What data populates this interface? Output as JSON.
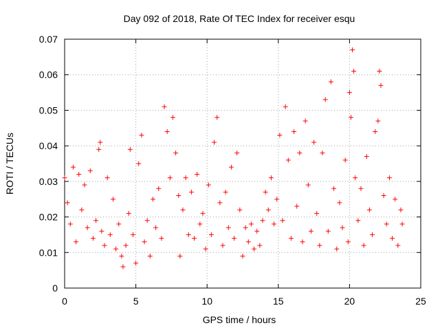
{
  "chart_data": {
    "type": "scatter",
    "title": "Day 092 of 2018, Rate Of TEC Index for receiver esqu",
    "xlabel": "GPS time / hours",
    "ylabel": "ROTI / TECUs",
    "xlim": [
      0,
      25
    ],
    "ylim": [
      0,
      0.07
    ],
    "x_ticks": [
      "0",
      "5",
      "10",
      "15",
      "20",
      "25"
    ],
    "y_ticks": [
      "0",
      "0.01",
      "0.02",
      "0.03",
      "0.04",
      "0.05",
      "0.06",
      "0.07"
    ],
    "x_tick_values": [
      0,
      5,
      10,
      15,
      20,
      25
    ],
    "y_tick_values": [
      0,
      0.01,
      0.02,
      0.03,
      0.04,
      0.05,
      0.06,
      0.07
    ],
    "grid": true,
    "marker": "+",
    "marker_color": "#ff0000",
    "series": [
      {
        "points": [
          [
            0.0,
            0.031
          ],
          [
            0.2,
            0.024
          ],
          [
            0.4,
            0.018
          ],
          [
            0.6,
            0.034
          ],
          [
            0.8,
            0.013
          ],
          [
            1.0,
            0.032
          ],
          [
            1.2,
            0.022
          ],
          [
            1.4,
            0.029
          ],
          [
            1.6,
            0.017
          ],
          [
            1.8,
            0.033
          ],
          [
            2.0,
            0.014
          ],
          [
            2.2,
            0.019
          ],
          [
            2.4,
            0.039
          ],
          [
            2.5,
            0.041
          ],
          [
            2.6,
            0.016
          ],
          [
            2.8,
            0.012
          ],
          [
            3.0,
            0.031
          ],
          [
            3.2,
            0.015
          ],
          [
            3.4,
            0.025
          ],
          [
            3.6,
            0.011
          ],
          [
            3.8,
            0.018
          ],
          [
            4.0,
            0.009
          ],
          [
            4.1,
            0.006
          ],
          [
            4.3,
            0.012
          ],
          [
            4.5,
            0.021
          ],
          [
            4.6,
            0.039
          ],
          [
            4.8,
            0.015
          ],
          [
            5.0,
            0.007
          ],
          [
            5.2,
            0.035
          ],
          [
            5.4,
            0.043
          ],
          [
            5.6,
            0.013
          ],
          [
            5.8,
            0.019
          ],
          [
            6.0,
            0.009
          ],
          [
            6.2,
            0.025
          ],
          [
            6.4,
            0.017
          ],
          [
            6.6,
            0.028
          ],
          [
            6.8,
            0.014
          ],
          [
            7.0,
            0.051
          ],
          [
            7.2,
            0.044
          ],
          [
            7.4,
            0.031
          ],
          [
            7.6,
            0.048
          ],
          [
            7.8,
            0.038
          ],
          [
            8.0,
            0.026
          ],
          [
            8.1,
            0.009
          ],
          [
            8.3,
            0.022
          ],
          [
            8.5,
            0.031
          ],
          [
            8.7,
            0.015
          ],
          [
            8.9,
            0.027
          ],
          [
            9.1,
            0.014
          ],
          [
            9.3,
            0.032
          ],
          [
            9.5,
            0.018
          ],
          [
            9.7,
            0.021
          ],
          [
            9.9,
            0.011
          ],
          [
            10.1,
            0.029
          ],
          [
            10.3,
            0.015
          ],
          [
            10.5,
            0.041
          ],
          [
            10.7,
            0.048
          ],
          [
            10.9,
            0.024
          ],
          [
            11.1,
            0.012
          ],
          [
            11.3,
            0.027
          ],
          [
            11.5,
            0.017
          ],
          [
            11.7,
            0.034
          ],
          [
            11.9,
            0.014
          ],
          [
            12.1,
            0.038
          ],
          [
            12.3,
            0.022
          ],
          [
            12.5,
            0.009
          ],
          [
            12.7,
            0.017
          ],
          [
            12.9,
            0.013
          ],
          [
            13.1,
            0.018
          ],
          [
            13.3,
            0.011
          ],
          [
            13.5,
            0.016
          ],
          [
            13.7,
            0.012
          ],
          [
            13.9,
            0.019
          ],
          [
            14.1,
            0.027
          ],
          [
            14.3,
            0.022
          ],
          [
            14.5,
            0.031
          ],
          [
            14.7,
            0.018
          ],
          [
            14.9,
            0.025
          ],
          [
            15.1,
            0.043
          ],
          [
            15.3,
            0.019
          ],
          [
            15.5,
            0.051
          ],
          [
            15.7,
            0.036
          ],
          [
            15.9,
            0.014
          ],
          [
            16.1,
            0.044
          ],
          [
            16.3,
            0.023
          ],
          [
            16.5,
            0.038
          ],
          [
            16.7,
            0.013
          ],
          [
            16.9,
            0.047
          ],
          [
            17.1,
            0.029
          ],
          [
            17.3,
            0.016
          ],
          [
            17.5,
            0.041
          ],
          [
            17.7,
            0.021
          ],
          [
            17.9,
            0.012
          ],
          [
            18.1,
            0.038
          ],
          [
            18.3,
            0.053
          ],
          [
            18.5,
            0.016
          ],
          [
            18.7,
            0.058
          ],
          [
            18.9,
            0.028
          ],
          [
            19.1,
            0.011
          ],
          [
            19.3,
            0.024
          ],
          [
            19.5,
            0.017
          ],
          [
            19.7,
            0.036
          ],
          [
            19.9,
            0.013
          ],
          [
            20.0,
            0.055
          ],
          [
            20.1,
            0.048
          ],
          [
            20.2,
            0.067
          ],
          [
            20.3,
            0.061
          ],
          [
            20.4,
            0.031
          ],
          [
            20.6,
            0.019
          ],
          [
            20.8,
            0.028
          ],
          [
            21.0,
            0.012
          ],
          [
            21.2,
            0.037
          ],
          [
            21.4,
            0.022
          ],
          [
            21.6,
            0.015
          ],
          [
            21.8,
            0.044
          ],
          [
            22.0,
            0.047
          ],
          [
            22.1,
            0.061
          ],
          [
            22.2,
            0.057
          ],
          [
            22.4,
            0.026
          ],
          [
            22.6,
            0.018
          ],
          [
            22.8,
            0.031
          ],
          [
            23.0,
            0.014
          ],
          [
            23.2,
            0.025
          ],
          [
            23.4,
            0.012
          ],
          [
            23.6,
            0.022
          ],
          [
            23.7,
            0.018
          ]
        ]
      }
    ]
  }
}
